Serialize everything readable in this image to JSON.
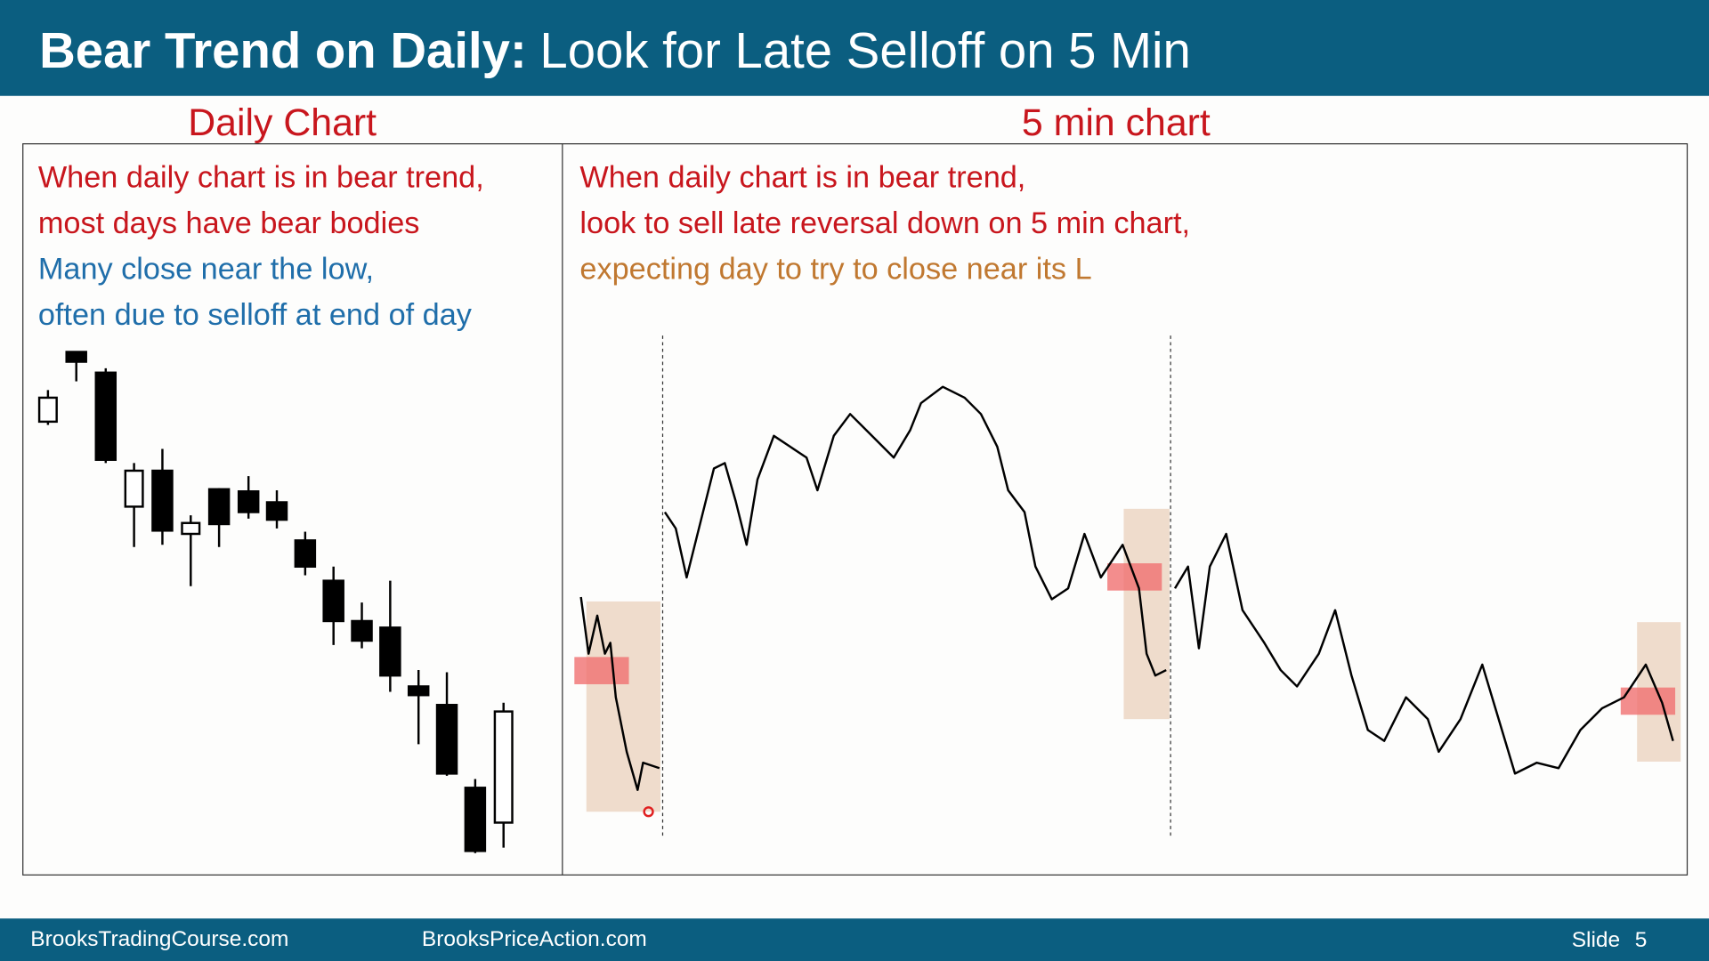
{
  "header": {
    "title_bold": "Bear Trend on Daily:",
    "title_rest": "Look for Late Selloff on 5 Min"
  },
  "left_panel": {
    "title": "Daily Chart",
    "lines": [
      "When daily chart is in bear trend,",
      "most days have bear bodies",
      "Many close near the low,",
      "often due to selloff at end of day"
    ]
  },
  "right_panel": {
    "title": "5 min chart",
    "lines": [
      "When daily chart is in bear trend,",
      "look to sell late reversal down on 5 min chart,",
      "expecting day to try to close near its L"
    ]
  },
  "footer": {
    "site1": "BrooksTradingCourse.com",
    "site2": "BrooksPriceAction.com",
    "slide_label": "Slide",
    "slide_number": "5"
  }
}
